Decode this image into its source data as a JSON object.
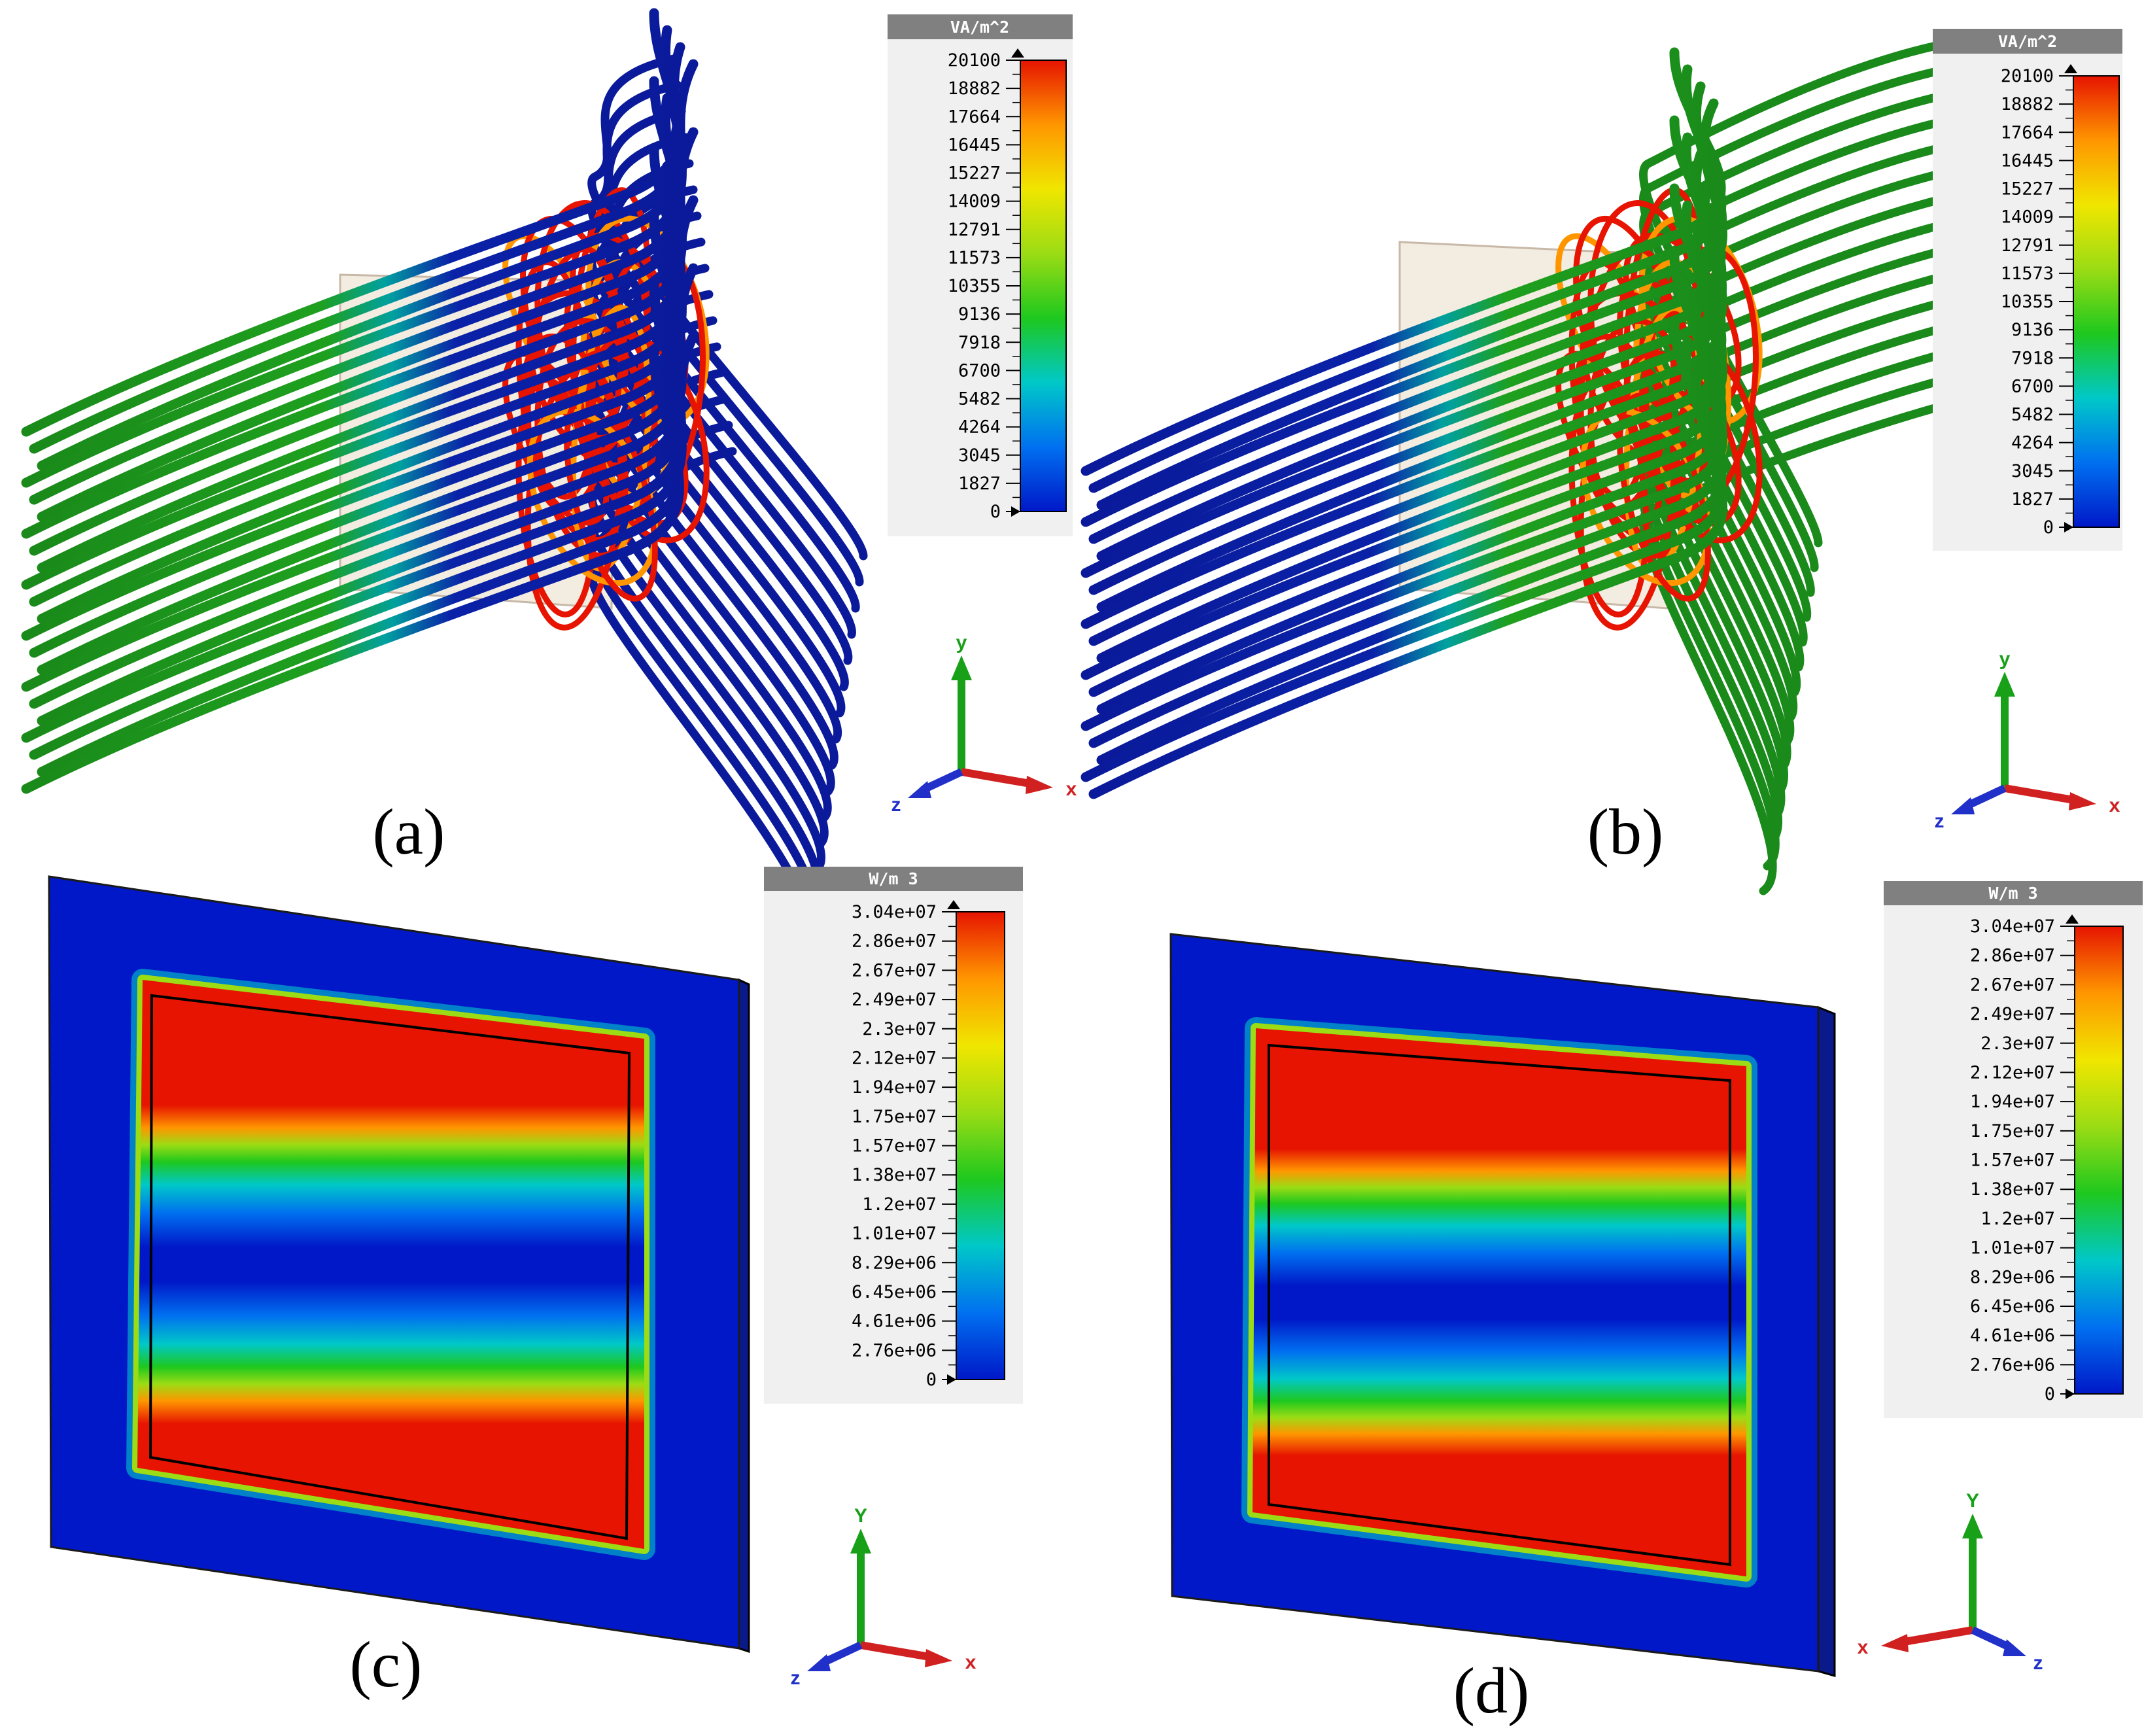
{
  "colorscale": [
    "#0018c8",
    "#0070f0",
    "#00c8c8",
    "#1ec81e",
    "#9bdc14",
    "#f0e600",
    "#ff9600",
    "#e61400"
  ],
  "panels": [
    {
      "label": "(a)",
      "type": "streamlines",
      "legend": {
        "unit": "VA/m^2",
        "ticks": [
          "20100",
          "18882",
          "17664",
          "16445",
          "15227",
          "14009",
          "12791",
          "11573",
          "10355",
          "9136",
          "7918",
          "6700",
          "5482",
          "4264",
          "3045",
          "1827",
          "0"
        ]
      },
      "axes": {
        "x": "x",
        "y": "y",
        "z": "z"
      }
    },
    {
      "label": "(b)",
      "type": "streamlines",
      "legend": {
        "unit": "VA/m^2",
        "ticks": [
          "20100",
          "18882",
          "17664",
          "16445",
          "15227",
          "14009",
          "12791",
          "11573",
          "10355",
          "9136",
          "7918",
          "6700",
          "5482",
          "4264",
          "3045",
          "1827",
          "0"
        ]
      },
      "axes": {
        "x": "x",
        "y": "y",
        "z": "z"
      }
    },
    {
      "label": "(c)",
      "type": "plate",
      "legend": {
        "unit": "W/m 3",
        "ticks": [
          "3.04e+07",
          "2.86e+07",
          "2.67e+07",
          "2.49e+07",
          "2.3e+07",
          "2.12e+07",
          "1.94e+07",
          "1.75e+07",
          "1.57e+07",
          "1.38e+07",
          "1.2e+07",
          "1.01e+07",
          "8.29e+06",
          "6.45e+06",
          "4.61e+06",
          "2.76e+06",
          "0"
        ]
      },
      "axes": {
        "x": "x",
        "y": "Y",
        "z": "z"
      }
    },
    {
      "label": "(d)",
      "type": "plate",
      "legend": {
        "unit": "W/m 3",
        "ticks": [
          "3.04e+07",
          "2.86e+07",
          "2.67e+07",
          "2.49e+07",
          "2.3e+07",
          "2.12e+07",
          "1.94e+07",
          "1.75e+07",
          "1.57e+07",
          "1.38e+07",
          "1.2e+07",
          "1.01e+07",
          "8.29e+06",
          "6.45e+06",
          "4.61e+06",
          "2.76e+06",
          "0"
        ]
      },
      "axes": {
        "x": "x",
        "y": "Y",
        "z": "z"
      }
    }
  ]
}
